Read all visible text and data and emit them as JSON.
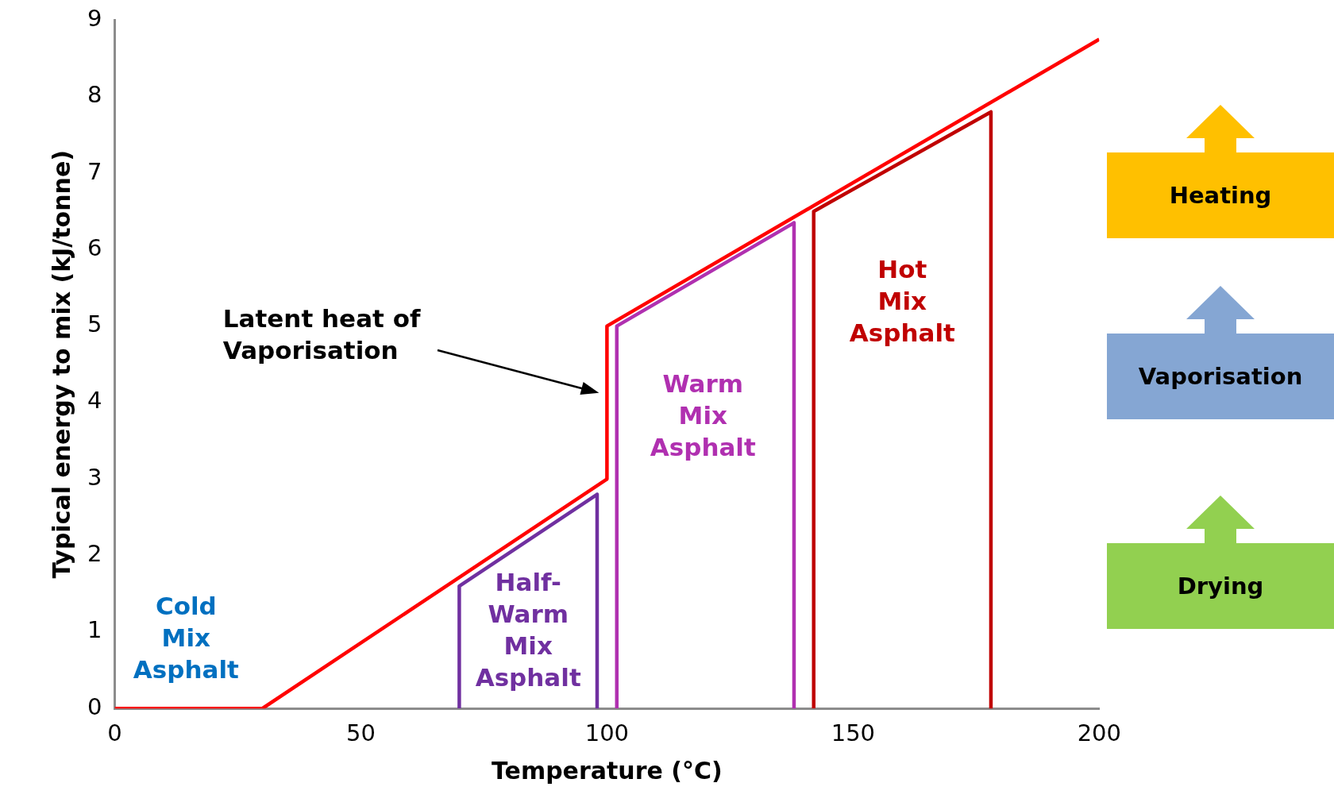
{
  "chart_data": {
    "type": "line",
    "xlabel": "Temperature (°C)",
    "ylabel": "Typical energy to mix (kJ/tonne)",
    "xlim": [
      0,
      200
    ],
    "xticks": [
      0,
      50,
      100,
      150,
      200
    ],
    "ylim": [
      0,
      9
    ],
    "yticks": [
      0,
      1,
      2,
      3,
      4,
      5,
      6,
      7,
      8,
      9
    ],
    "marker": "none",
    "line_style": "solid",
    "series": [
      {
        "color": "#ff0000",
        "x": [
          0,
          30,
          100,
          100,
          200
        ],
        "values": [
          0,
          0,
          3,
          5,
          8.75
        ]
      },
      {
        "color": "#7030a0",
        "x": [
          70,
          70,
          98,
          98
        ],
        "values": [
          0,
          1.6,
          2.8,
          0
        ]
      },
      {
        "color": "#b030b0",
        "x": [
          102,
          102,
          138,
          138
        ],
        "values": [
          0,
          5,
          6.35,
          0
        ]
      },
      {
        "color": "#c00000",
        "x": [
          142,
          142,
          178,
          178
        ],
        "values": [
          0,
          6.5,
          7.8,
          0
        ]
      }
    ],
    "annotations": [
      "Cold\nMix\nAsphalt",
      "Half-\nWarm\nMix\nAsphalt",
      "Warm\nMix\nAsphalt",
      "Hot\nMix\nAsphalt",
      "Latent heat of\nVaporisation",
      "Heating",
      "Vaporisation",
      "Drying"
    ]
  }
}
